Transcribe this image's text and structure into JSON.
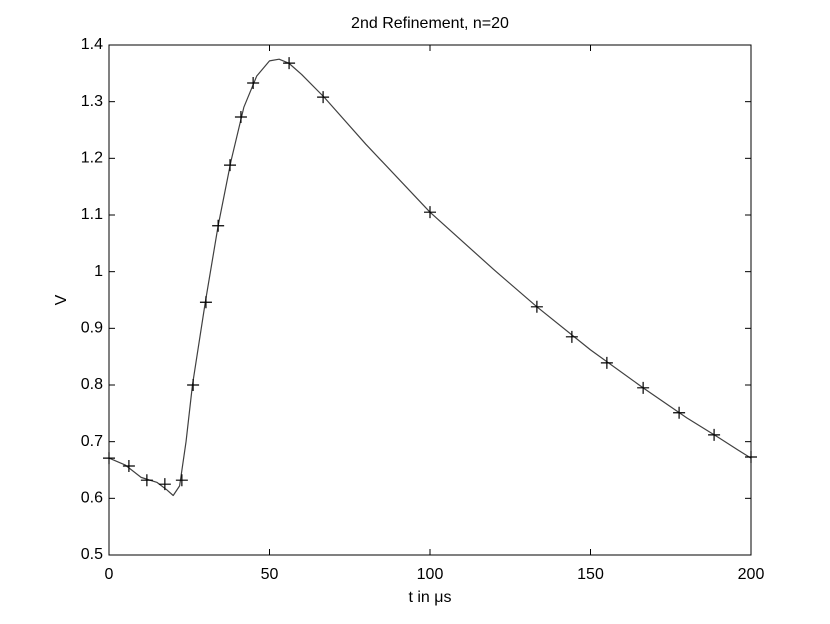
{
  "chart_data": {
    "type": "line",
    "title": "2nd Refinement, n=20",
    "xlabel": "t in μs",
    "ylabel": "V",
    "xlim": [
      0,
      200
    ],
    "ylim": [
      0.5,
      1.4
    ],
    "xticks": [
      0,
      50,
      100,
      150,
      200
    ],
    "yticks": [
      0.5,
      0.6,
      0.7,
      0.8,
      0.9,
      1,
      1.1,
      1.2,
      1.3,
      1.4
    ],
    "grid": false,
    "series": [
      {
        "color": "#404040",
        "marker": "none",
        "x": [
          0,
          5,
          10,
          15,
          18,
          20,
          22,
          24,
          26,
          30,
          34,
          38,
          42,
          46,
          50,
          53,
          56,
          60,
          67,
          80,
          100,
          120,
          133.3,
          150,
          166.4,
          180,
          190,
          196,
          200
        ],
        "values": [
          0.671,
          0.659,
          0.637,
          0.628,
          0.615,
          0.605,
          0.622,
          0.7,
          0.8,
          0.946,
          1.081,
          1.195,
          1.29,
          1.345,
          1.372,
          1.375,
          1.368,
          1.348,
          1.308,
          1.225,
          1.105,
          1.003,
          0.938,
          0.862,
          0.795,
          0.742,
          0.707,
          0.685,
          0.671
        ]
      },
      {
        "color": "#000000",
        "marker": "+",
        "x": [
          0,
          6.2,
          11.8,
          17.4,
          22.7,
          26.2,
          30.2,
          34,
          37.7,
          41.1,
          44.9,
          56.1,
          66.7,
          100,
          133.3,
          144.2,
          155.1,
          166.4,
          177.6,
          188.5,
          200
        ],
        "values": [
          0.671,
          0.657,
          0.632,
          0.625,
          0.632,
          0.8,
          0.946,
          1.081,
          1.188,
          1.273,
          1.333,
          1.368,
          1.308,
          1.105,
          0.938,
          0.885,
          0.839,
          0.795,
          0.751,
          0.712,
          0.673
        ]
      }
    ]
  }
}
